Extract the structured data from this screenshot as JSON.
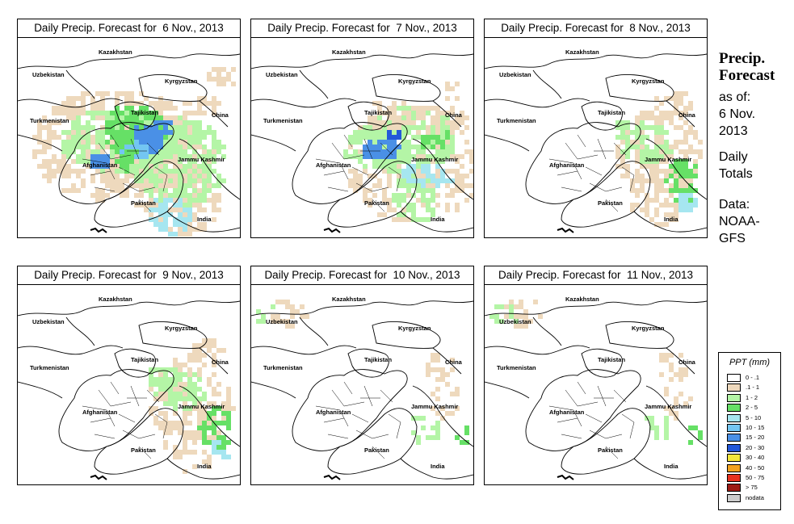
{
  "panels": [
    {
      "title": "Daily Precip. Forecast for  6 Nov., 2013",
      "precip_level": "heavy"
    },
    {
      "title": "Daily Precip. Forecast for  7 Nov., 2013",
      "precip_level": "moderate"
    },
    {
      "title": "Daily Precip. Forecast for  8 Nov., 2013",
      "precip_level": "light-east"
    },
    {
      "title": "Daily Precip. Forecast for  9 Nov., 2013",
      "precip_level": "light-east"
    },
    {
      "title": "Daily Precip. Forecast for  10 Nov., 2013",
      "precip_level": "minimal"
    },
    {
      "title": "Daily Precip. Forecast for  11 Nov., 2013",
      "precip_level": "minimal"
    }
  ],
  "map_labels": {
    "kazakhstan": "Kazakhstan",
    "uzbekistan": "Uzbekistan",
    "kyrgyzstan": "Kyrgyzstan",
    "tajikistan": "Tajikistan",
    "turkmenistan": "Turkmenistan",
    "china": "China",
    "afghanistan": "Afghanistan",
    "jammu_kashmir": "Jammu Kashmir",
    "pakistan": "Pakistan",
    "india": "India"
  },
  "side": {
    "title_line1": "Precip.",
    "title_line2": "Forecast",
    "asof_line1": "as of:",
    "asof_line2": "6 Nov.",
    "asof_line3": "2013",
    "daily_line1": "Daily",
    "daily_line2": "Totals",
    "data_line1": "Data:",
    "data_line2": "NOAA-",
    "data_line3": "GFS"
  },
  "legend": {
    "title": "PPT (mm)",
    "rows": [
      {
        "label": "0 - .1",
        "color": "#ffffff"
      },
      {
        "label": ".1 - 1",
        "color": "#eed9bd"
      },
      {
        "label": "1 - 2",
        "color": "#b4f5a6"
      },
      {
        "label": "2 - 5",
        "color": "#66e066"
      },
      {
        "label": "5 - 10",
        "color": "#a6e6f0"
      },
      {
        "label": "10 - 15",
        "color": "#73c6f2"
      },
      {
        "label": "15 - 20",
        "color": "#4a90e6"
      },
      {
        "label": "20 - 30",
        "color": "#2358d9"
      },
      {
        "label": "30 - 40",
        "color": "#f5e63c"
      },
      {
        "label": "40 - 50",
        "color": "#f2a21f"
      },
      {
        "label": "50 - 75",
        "color": "#e8321e"
      },
      {
        "label": "> 75",
        "color": "#9e1b14"
      },
      {
        "label": "nodata",
        "color": "#cccccc"
      }
    ]
  }
}
